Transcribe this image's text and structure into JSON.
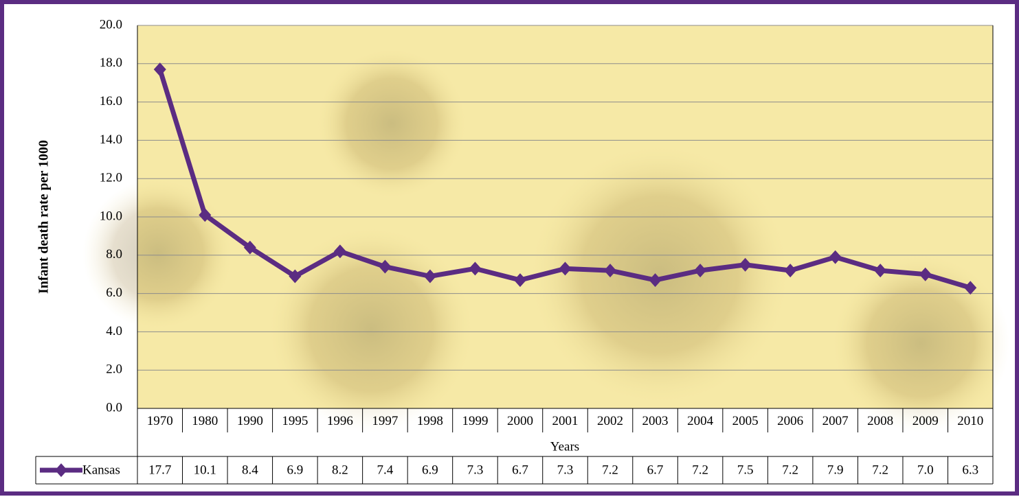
{
  "chart_data": {
    "type": "line",
    "y_label": "Infant death rate  per 1000",
    "x_label": "Years",
    "categories": [
      "1970",
      "1980",
      "1990",
      "1995",
      "1996",
      "1997",
      "1998",
      "1999",
      "2000",
      "2001",
      "2002",
      "2003",
      "2004",
      "2005",
      "2006",
      "2007",
      "2008",
      "2009",
      "2010"
    ],
    "series": [
      {
        "name": "Kansas",
        "color": "#5b2c82",
        "values": [
          17.7,
          10.1,
          8.4,
          6.9,
          8.2,
          7.4,
          6.9,
          7.3,
          6.7,
          7.3,
          7.2,
          6.7,
          7.2,
          7.5,
          7.2,
          7.9,
          7.2,
          7.0,
          6.3
        ],
        "value_labels": [
          "17.7",
          "10.1",
          "8.4",
          "6.9",
          "8.2",
          "7.4",
          "6.9",
          "7.3",
          "6.7",
          "7.3",
          "7.2",
          "6.7",
          "7.2",
          "7.5",
          "7.2",
          "7.9",
          "7.2",
          "7.0",
          "6.3"
        ]
      }
    ],
    "ylim": [
      0,
      20
    ],
    "yticks": [
      {
        "value": 0,
        "label": "0.0"
      },
      {
        "value": 2,
        "label": "2.0"
      },
      {
        "value": 4,
        "label": "4.0"
      },
      {
        "value": 6,
        "label": "6.0"
      },
      {
        "value": 8,
        "label": "8.0"
      },
      {
        "value": 10,
        "label": "10.0"
      },
      {
        "value": 12,
        "label": "12.0"
      },
      {
        "value": 14,
        "label": "14.0"
      },
      {
        "value": 16,
        "label": "16.0"
      },
      {
        "value": 18,
        "label": "18.0"
      },
      {
        "value": 20,
        "label": "20.0"
      }
    ],
    "grid": true
  }
}
